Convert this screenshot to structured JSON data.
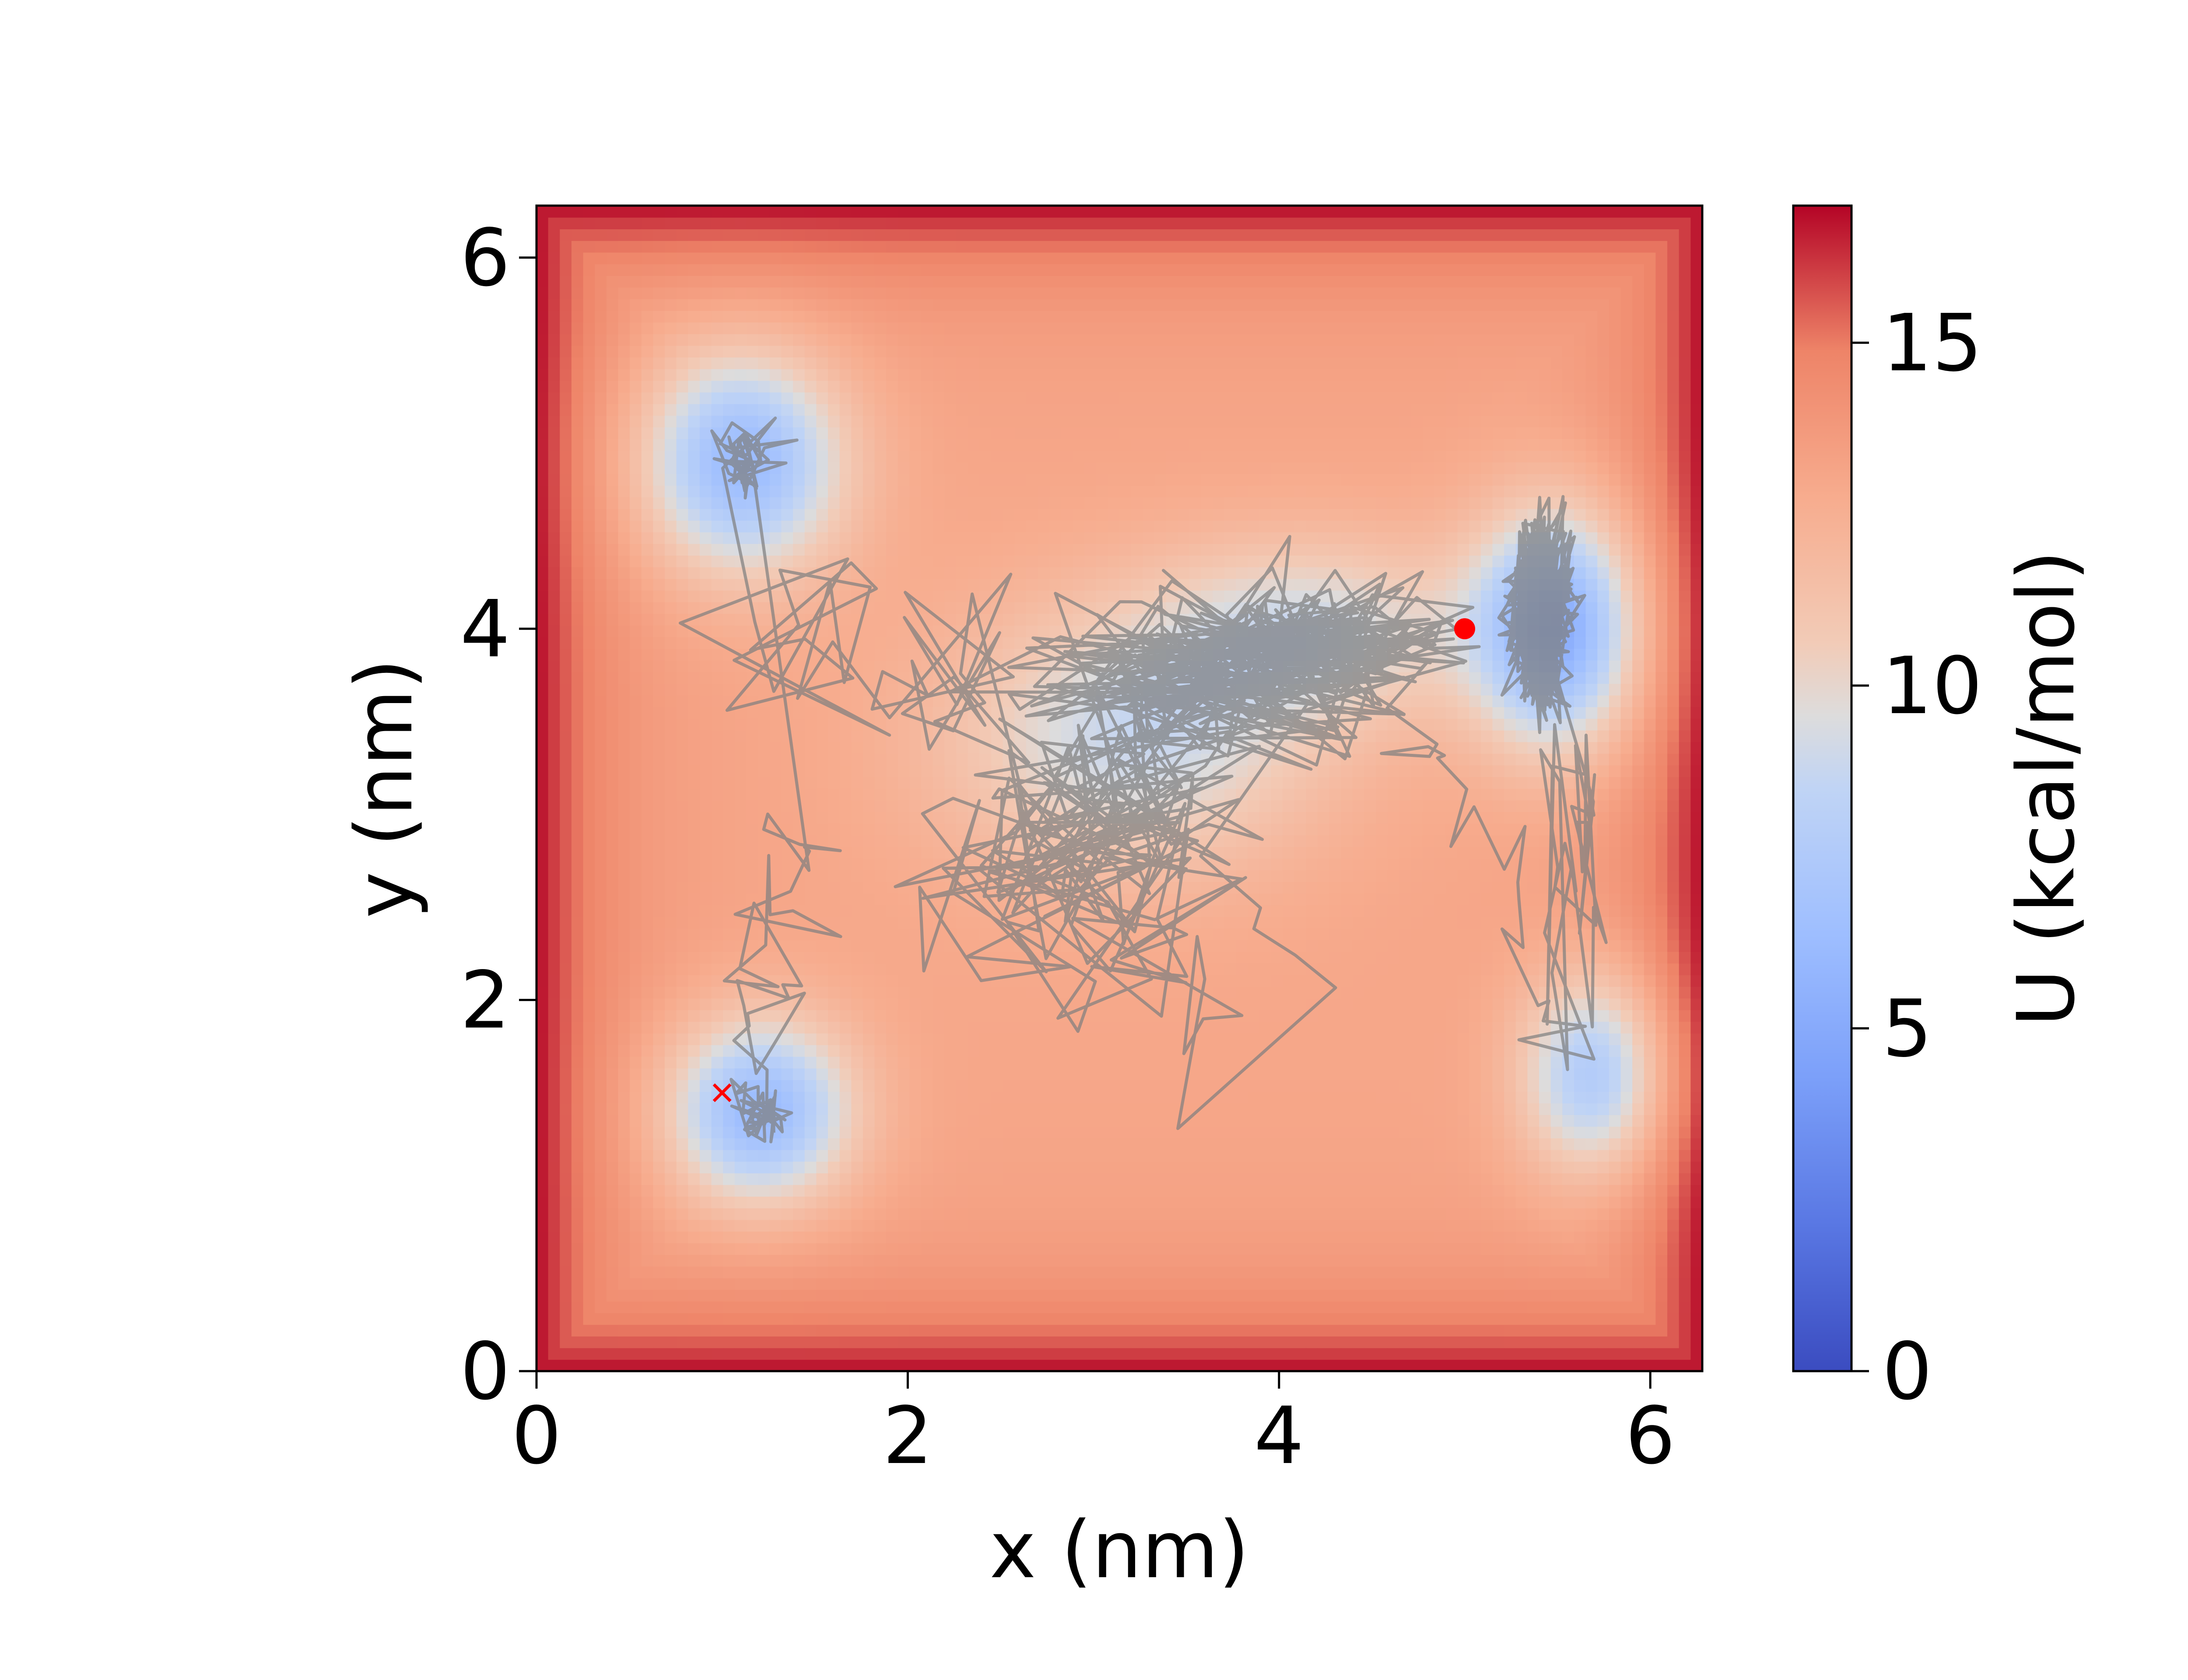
{
  "chart_data": {
    "type": "heatmap",
    "title": "",
    "xlabel": "x (nm)",
    "ylabel": "y (nm)",
    "xlim": [
      0,
      6.28
    ],
    "ylim": [
      0,
      6.28
    ],
    "xticks": [
      0,
      2,
      4,
      6
    ],
    "yticks": [
      0,
      2,
      4,
      6
    ],
    "xtick_labels": [
      "0",
      "2",
      "4",
      "6"
    ],
    "ytick_labels": [
      "0",
      "2",
      "4",
      "6"
    ],
    "colormap": "coolwarm",
    "colorbar": {
      "label": "U (kcal/mol)",
      "range": [
        0,
        17
      ],
      "ticks": [
        0,
        5,
        10,
        15
      ],
      "tick_labels": [
        "0",
        "5",
        "10",
        "15"
      ]
    },
    "surface": {
      "baseline_kcal_mol": 13,
      "edge_kcal_mol": 17,
      "minima": [
        {
          "x": 1.1,
          "y": 4.9,
          "depth_kcal_mol": 7
        },
        {
          "x": 1.2,
          "y": 1.4,
          "depth_kcal_mol": 7
        },
        {
          "x": 5.5,
          "y": 4.0,
          "depth_kcal_mol": 8
        },
        {
          "x": 5.7,
          "y": 1.6,
          "depth_kcal_mol": 6
        },
        {
          "x": 3.2,
          "y": 3.4,
          "depth_kcal_mol": 4
        },
        {
          "x": 4.2,
          "y": 4.0,
          "depth_kcal_mol": 3.5
        }
      ]
    },
    "trajectory": {
      "color": "#808080",
      "start_basin": {
        "x": 1.2,
        "y": 1.4
      },
      "end_basin": {
        "x": 5.4,
        "y": 4.1
      }
    },
    "markers": [
      {
        "name": "start",
        "shape": "x",
        "x": 1.0,
        "y": 1.5,
        "color": "#ff0000"
      },
      {
        "name": "end",
        "shape": "circle",
        "x": 5.0,
        "y": 4.0,
        "color": "#ff0000"
      }
    ]
  }
}
